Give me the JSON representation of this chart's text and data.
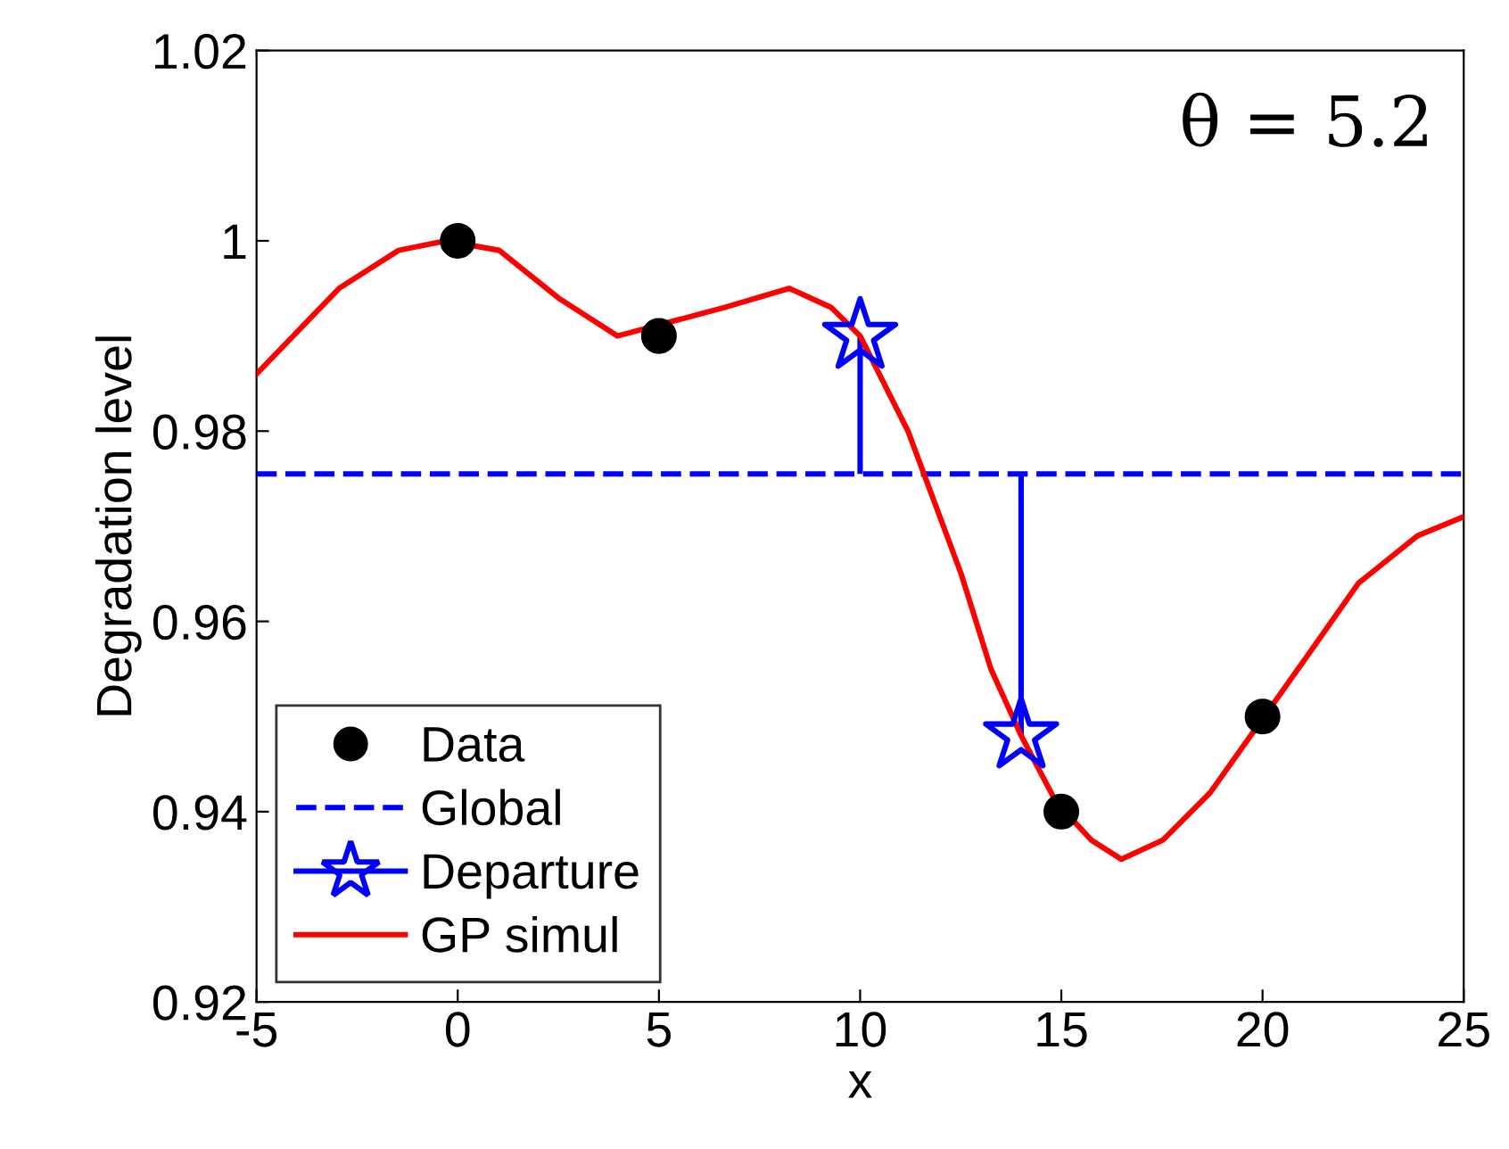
{
  "chart_data": {
    "type": "line",
    "xlabel": "x",
    "ylabel": "Degradation level",
    "annotations": [
      "θ = 5.2"
    ],
    "xlim": [
      -5,
      25
    ],
    "xticks": [
      -5,
      0,
      5,
      10,
      15,
      20,
      25
    ],
    "ylim": [
      0.92,
      1.02
    ],
    "yticks": [
      {
        "value": 0.92,
        "label": "0.92"
      },
      {
        "value": 0.94,
        "label": "0.94"
      },
      {
        "value": 0.96,
        "label": "0.96"
      },
      {
        "value": 0.98,
        "label": "0.98"
      },
      {
        "value": 1,
        "label": "1"
      },
      {
        "value": 1.02,
        "label": "1.02"
      }
    ],
    "grid": false,
    "legend": "bottom left",
    "series": [
      {
        "name": "Data",
        "type": "scatter",
        "marker": "circle",
        "color": "#000000",
        "x": [
          0,
          5,
          15,
          20
        ],
        "values": [
          1.0,
          0.99,
          0.94,
          0.95
        ]
      },
      {
        "name": "Global",
        "line_style": "dashed",
        "marker": "none",
        "color": "#0000ff",
        "x": [
          -5,
          25
        ],
        "values": [
          0.9755,
          0.9755
        ]
      },
      {
        "name": "Departure",
        "type": "scatter",
        "marker": "star",
        "color": "#0000ff",
        "x": [
          10,
          14
        ],
        "values": [
          0.99,
          0.948
        ],
        "errors": [
          [
            0.9755,
            0.99
          ],
          [
            0.948,
            0.9755
          ]
        ]
      },
      {
        "name": "GP simul",
        "line_style": "solid",
        "marker": "none",
        "color": "#ff0000",
        "x": [
          -5.0,
          -2.95,
          -1.47,
          -0.3,
          1.03,
          2.5,
          3.97,
          6.63,
          8.24,
          9.28,
          10.0,
          11.19,
          11.63,
          12.51,
          13.25,
          14.0,
          14.87,
          15.75,
          16.49,
          17.52,
          18.7,
          21.05,
          22.38,
          23.85,
          25.0
        ],
        "values": [
          0.986,
          0.995,
          0.999,
          1.0,
          0.999,
          0.994,
          0.99,
          0.993,
          0.995,
          0.993,
          0.99,
          0.98,
          0.975,
          0.965,
          0.955,
          0.948,
          0.941,
          0.937,
          0.935,
          0.937,
          0.942,
          0.956,
          0.964,
          0.969,
          0.971
        ]
      }
    ]
  }
}
